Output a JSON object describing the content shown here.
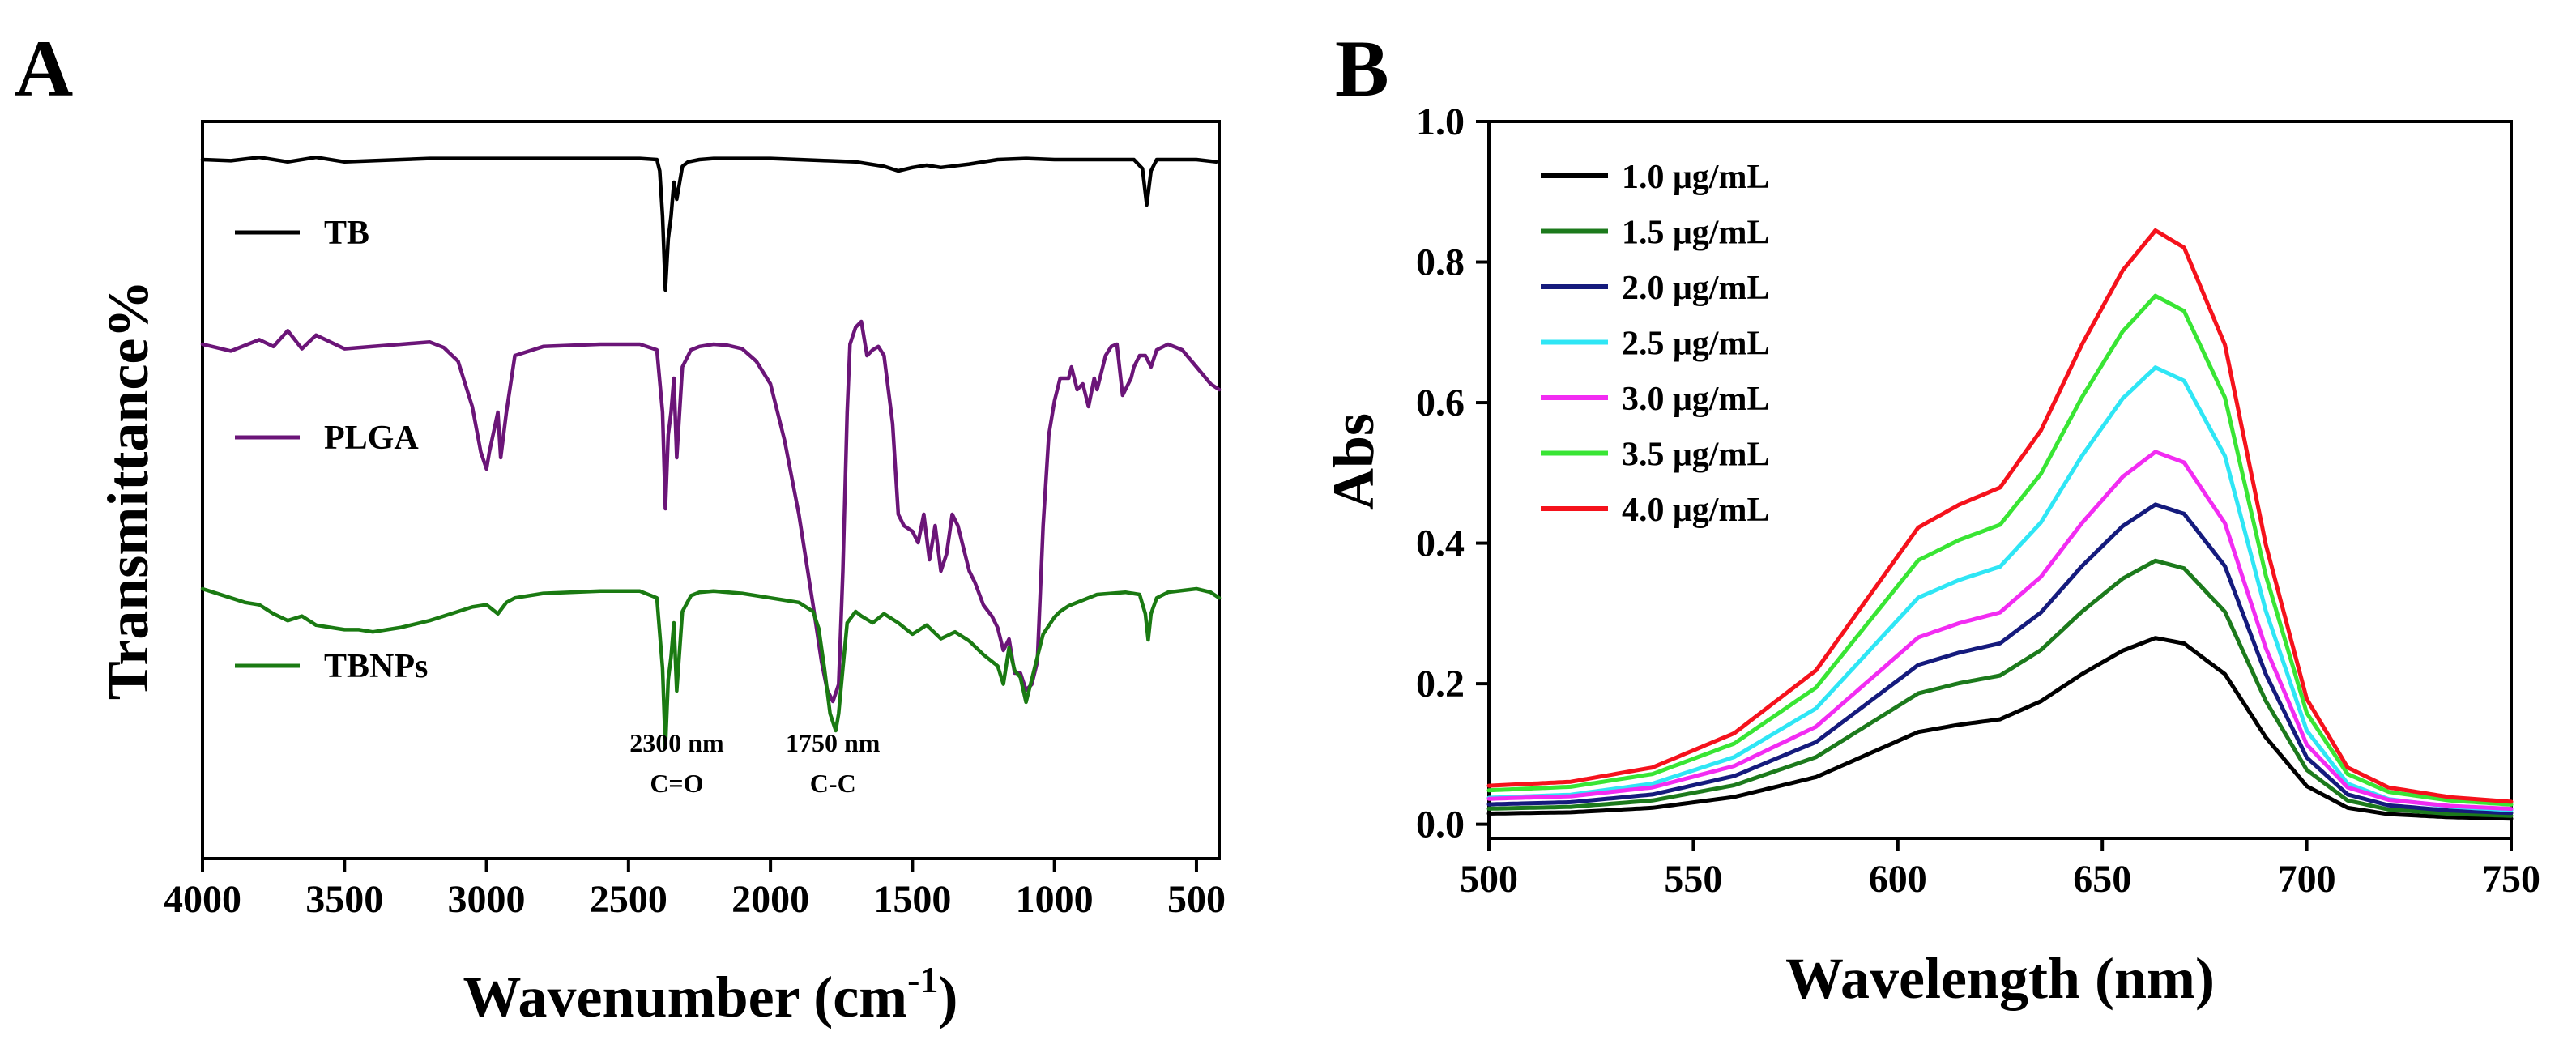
{
  "chart_data": [
    {
      "panel": "A",
      "type": "line",
      "title": "",
      "xlabel": "Wavenumber (cm",
      "xlabel_sup": "-1",
      "xlabel_end": ")",
      "ylabel": "Transmittance%",
      "xlim": [
        4000,
        420
      ],
      "x_ticks": [
        4000,
        3500,
        3000,
        2500,
        2000,
        1500,
        1000,
        500
      ],
      "y_ticks": [],
      "series": [
        {
          "name": "TB",
          "color": "#000000",
          "offset": 0,
          "points": [
            [
              4000,
              0
            ],
            [
              3900,
              -1
            ],
            [
              3800,
              2
            ],
            [
              3700,
              -2
            ],
            [
              3600,
              2
            ],
            [
              3500,
              -2
            ],
            [
              3400,
              -1
            ],
            [
              3300,
              0
            ],
            [
              3200,
              1
            ],
            [
              3000,
              1
            ],
            [
              2800,
              1
            ],
            [
              2600,
              1
            ],
            [
              2460,
              1
            ],
            [
              2400,
              0
            ],
            [
              2390,
              -10
            ],
            [
              2380,
              -50
            ],
            [
              2370,
              -115
            ],
            [
              2360,
              -70
            ],
            [
              2350,
              -50
            ],
            [
              2340,
              -20
            ],
            [
              2330,
              -35
            ],
            [
              2310,
              -6
            ],
            [
              2290,
              -2
            ],
            [
              2250,
              0
            ],
            [
              2200,
              1
            ],
            [
              2000,
              1
            ],
            [
              1900,
              0
            ],
            [
              1800,
              -1
            ],
            [
              1700,
              -2
            ],
            [
              1650,
              -4
            ],
            [
              1600,
              -6
            ],
            [
              1550,
              -10
            ],
            [
              1500,
              -7
            ],
            [
              1450,
              -5
            ],
            [
              1400,
              -7
            ],
            [
              1300,
              -4
            ],
            [
              1200,
              0
            ],
            [
              1100,
              1
            ],
            [
              1000,
              0
            ],
            [
              900,
              0
            ],
            [
              800,
              0
            ],
            [
              720,
              0
            ],
            [
              690,
              -8
            ],
            [
              675,
              -40
            ],
            [
              660,
              -10
            ],
            [
              640,
              0
            ],
            [
              500,
              0
            ],
            [
              430,
              -2
            ]
          ]
        },
        {
          "name": "PLGA",
          "color": "#6b1578",
          "offset": -290,
          "points": [
            [
              4000,
              0
            ],
            [
              3900,
              -6
            ],
            [
              3800,
              4
            ],
            [
              3750,
              -2
            ],
            [
              3700,
              12
            ],
            [
              3650,
              -4
            ],
            [
              3600,
              8
            ],
            [
              3500,
              -4
            ],
            [
              3400,
              -2
            ],
            [
              3300,
              0
            ],
            [
              3200,
              2
            ],
            [
              3150,
              -3
            ],
            [
              3100,
              -15
            ],
            [
              3050,
              -55
            ],
            [
              3020,
              -95
            ],
            [
              3000,
              -110
            ],
            [
              2990,
              -95
            ],
            [
              2960,
              -60
            ],
            [
              2950,
              -100
            ],
            [
              2930,
              -60
            ],
            [
              2900,
              -10
            ],
            [
              2800,
              -2
            ],
            [
              2600,
              0
            ],
            [
              2460,
              0
            ],
            [
              2400,
              -5
            ],
            [
              2380,
              -60
            ],
            [
              2370,
              -145
            ],
            [
              2360,
              -80
            ],
            [
              2350,
              -60
            ],
            [
              2340,
              -30
            ],
            [
              2330,
              -100
            ],
            [
              2310,
              -20
            ],
            [
              2280,
              -5
            ],
            [
              2250,
              -2
            ],
            [
              2200,
              0
            ],
            [
              2150,
              -1
            ],
            [
              2100,
              -4
            ],
            [
              2050,
              -15
            ],
            [
              2000,
              -35
            ],
            [
              1950,
              -85
            ],
            [
              1900,
              -150
            ],
            [
              1850,
              -230
            ],
            [
              1820,
              -280
            ],
            [
              1800,
              -305
            ],
            [
              1780,
              -315
            ],
            [
              1760,
              -300
            ],
            [
              1745,
              -200
            ],
            [
              1730,
              -60
            ],
            [
              1720,
              0
            ],
            [
              1700,
              15
            ],
            [
              1680,
              20
            ],
            [
              1660,
              -10
            ],
            [
              1640,
              -5
            ],
            [
              1620,
              -2
            ],
            [
              1600,
              -10
            ],
            [
              1570,
              -70
            ],
            [
              1550,
              -150
            ],
            [
              1530,
              -160
            ],
            [
              1500,
              -165
            ],
            [
              1480,
              -175
            ],
            [
              1460,
              -150
            ],
            [
              1440,
              -190
            ],
            [
              1420,
              -160
            ],
            [
              1400,
              -200
            ],
            [
              1380,
              -185
            ],
            [
              1360,
              -150
            ],
            [
              1340,
              -160
            ],
            [
              1300,
              -200
            ],
            [
              1280,
              -210
            ],
            [
              1250,
              -230
            ],
            [
              1220,
              -240
            ],
            [
              1200,
              -250
            ],
            [
              1180,
              -270
            ],
            [
              1160,
              -260
            ],
            [
              1140,
              -290
            ],
            [
              1120,
              -290
            ],
            [
              1100,
              -305
            ],
            [
              1080,
              -300
            ],
            [
              1060,
              -280
            ],
            [
              1040,
              -160
            ],
            [
              1020,
              -80
            ],
            [
              1000,
              -50
            ],
            [
              980,
              -30
            ],
            [
              950,
              -30
            ],
            [
              940,
              -20
            ],
            [
              920,
              -40
            ],
            [
              900,
              -35
            ],
            [
              880,
              -55
            ],
            [
              860,
              -30
            ],
            [
              850,
              -40
            ],
            [
              820,
              -10
            ],
            [
              800,
              -2
            ],
            [
              780,
              0
            ],
            [
              760,
              -45
            ],
            [
              750,
              -40
            ],
            [
              730,
              -30
            ],
            [
              720,
              -20
            ],
            [
              700,
              -10
            ],
            [
              680,
              -10
            ],
            [
              660,
              -20
            ],
            [
              640,
              -5
            ],
            [
              600,
              0
            ],
            [
              550,
              -5
            ],
            [
              500,
              -20
            ],
            [
              450,
              -35
            ],
            [
              420,
              -40
            ]
          ]
        },
        {
          "name": "TBNPs",
          "color": "#1a7a12",
          "offset": -680,
          "points": [
            [
              4000,
              0
            ],
            [
              3900,
              -8
            ],
            [
              3850,
              -12
            ],
            [
              3800,
              -14
            ],
            [
              3750,
              -22
            ],
            [
              3700,
              -28
            ],
            [
              3650,
              -24
            ],
            [
              3600,
              -32
            ],
            [
              3550,
              -34
            ],
            [
              3500,
              -36
            ],
            [
              3450,
              -36
            ],
            [
              3400,
              -38
            ],
            [
              3350,
              -36
            ],
            [
              3300,
              -34
            ],
            [
              3200,
              -28
            ],
            [
              3100,
              -20
            ],
            [
              3050,
              -16
            ],
            [
              3000,
              -14
            ],
            [
              2960,
              -22
            ],
            [
              2930,
              -12
            ],
            [
              2900,
              -8
            ],
            [
              2800,
              -4
            ],
            [
              2600,
              -2
            ],
            [
              2460,
              -2
            ],
            [
              2400,
              -8
            ],
            [
              2380,
              -70
            ],
            [
              2370,
              -140
            ],
            [
              2360,
              -80
            ],
            [
              2350,
              -60
            ],
            [
              2340,
              -30
            ],
            [
              2330,
              -90
            ],
            [
              2310,
              -20
            ],
            [
              2280,
              -6
            ],
            [
              2250,
              -3
            ],
            [
              2200,
              -2
            ],
            [
              2100,
              -4
            ],
            [
              2000,
              -8
            ],
            [
              1950,
              -10
            ],
            [
              1900,
              -12
            ],
            [
              1850,
              -20
            ],
            [
              1830,
              -35
            ],
            [
              1810,
              -70
            ],
            [
              1790,
              -110
            ],
            [
              1770,
              -125
            ],
            [
              1760,
              -110
            ],
            [
              1745,
              -70
            ],
            [
              1730,
              -30
            ],
            [
              1700,
              -20
            ],
            [
              1680,
              -24
            ],
            [
              1640,
              -30
            ],
            [
              1600,
              -22
            ],
            [
              1550,
              -30
            ],
            [
              1500,
              -40
            ],
            [
              1450,
              -32
            ],
            [
              1400,
              -44
            ],
            [
              1350,
              -38
            ],
            [
              1300,
              -46
            ],
            [
              1250,
              -58
            ],
            [
              1200,
              -68
            ],
            [
              1180,
              -84
            ],
            [
              1160,
              -52
            ],
            [
              1140,
              -72
            ],
            [
              1120,
              -78
            ],
            [
              1100,
              -100
            ],
            [
              1080,
              -80
            ],
            [
              1060,
              -60
            ],
            [
              1040,
              -40
            ],
            [
              1000,
              -25
            ],
            [
              980,
              -20
            ],
            [
              950,
              -15
            ],
            [
              900,
              -10
            ],
            [
              850,
              -5
            ],
            [
              800,
              -4
            ],
            [
              750,
              -3
            ],
            [
              700,
              -5
            ],
            [
              680,
              -22
            ],
            [
              670,
              -45
            ],
            [
              660,
              -22
            ],
            [
              640,
              -8
            ],
            [
              600,
              -3
            ],
            [
              500,
              0
            ],
            [
              450,
              -3
            ],
            [
              420,
              -8
            ]
          ]
        }
      ],
      "annotations": [
        {
          "line1": "2300 nm",
          "line2": "C=O",
          "x": 2330
        },
        {
          "line1": "1750 nm",
          "line2": "C-C",
          "x": 1780
        }
      ]
    },
    {
      "panel": "B",
      "type": "line",
      "title": "",
      "xlabel": "Wavelength (nm)",
      "ylabel": "Abs",
      "xlim": [
        500,
        750
      ],
      "ylim": [
        -0.02,
        1.0
      ],
      "x_ticks": [
        500,
        550,
        600,
        650,
        700,
        750
      ],
      "y_ticks": [
        0.0,
        0.2,
        0.4,
        0.6,
        0.8,
        1.0
      ],
      "y_tick_labels": [
        "0.0",
        "0.2",
        "0.4",
        "0.6",
        "0.8",
        "1.0"
      ],
      "legend_position": "top-left",
      "profile": [
        [
          500,
          0.028
        ],
        [
          520,
          0.035
        ],
        [
          540,
          0.06
        ],
        [
          560,
          0.12
        ],
        [
          580,
          0.23
        ],
        [
          595,
          0.38
        ],
        [
          605,
          0.48
        ],
        [
          615,
          0.52
        ],
        [
          625,
          0.55
        ],
        [
          635,
          0.65
        ],
        [
          645,
          0.8
        ],
        [
          655,
          0.93
        ],
        [
          663,
          1.0
        ],
        [
          670,
          0.97
        ],
        [
          680,
          0.8
        ],
        [
          690,
          0.45
        ],
        [
          700,
          0.18
        ],
        [
          710,
          0.06
        ],
        [
          720,
          0.025
        ],
        [
          735,
          0.008
        ],
        [
          750,
          0.0
        ]
      ],
      "series": [
        {
          "name": "1.0 μg/mL",
          "color": "#000000",
          "peak": 0.265,
          "baseline": 0.008
        },
        {
          "name": "1.5 μg/mL",
          "color": "#1c7a1c",
          "peak": 0.375,
          "baseline": 0.012
        },
        {
          "name": "2.0 μg/mL",
          "color": "#151b7d",
          "peak": 0.455,
          "baseline": 0.016
        },
        {
          "name": "2.5 μg/mL",
          "color": "#2fe6f5",
          "peak": 0.65,
          "baseline": 0.02
        },
        {
          "name": "3.0 μg/mL",
          "color": "#f22cf2",
          "peak": 0.53,
          "baseline": 0.022
        },
        {
          "name": "3.5 μg/mL",
          "color": "#39e534",
          "peak": 0.752,
          "baseline": 0.028
        },
        {
          "name": "4.0 μg/mL",
          "color": "#f5121c",
          "peak": 0.845,
          "baseline": 0.032
        }
      ]
    }
  ]
}
